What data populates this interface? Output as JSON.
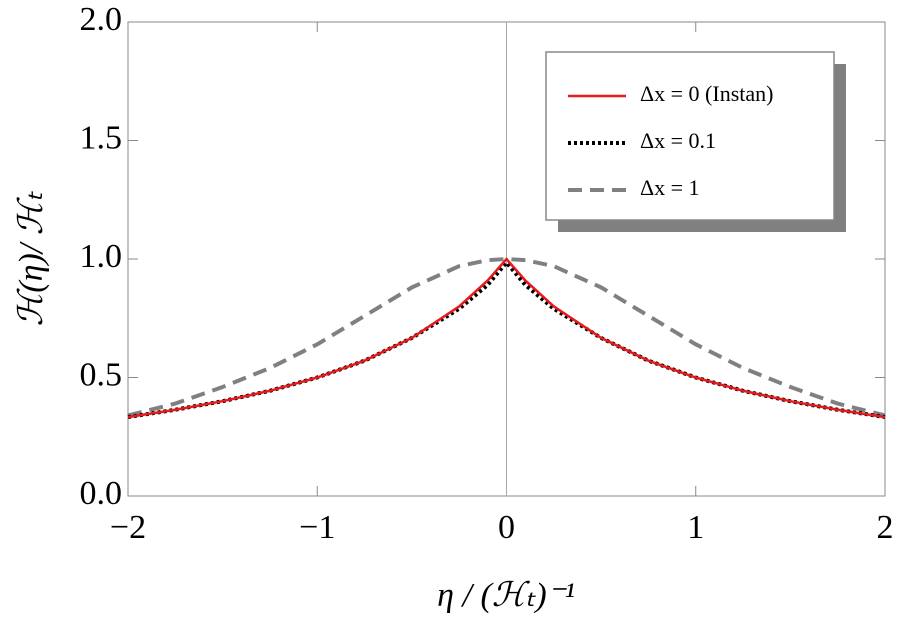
{
  "chart_data": {
    "type": "line",
    "xlabel": "η / (ℋₜ)⁻¹",
    "ylabel": "ℋ(η)/ ℋₜ",
    "x": [
      -2,
      -1.75,
      -1.5,
      -1.25,
      -1,
      -0.75,
      -0.5,
      -0.25,
      -0.1,
      0,
      0.1,
      0.25,
      0.5,
      0.75,
      1,
      1.25,
      1.5,
      1.75,
      2
    ],
    "series": [
      {
        "name": "Δx = 0 (Instan)",
        "color": "#e8191b",
        "values": [
          0.333,
          0.364,
          0.4,
          0.444,
          0.5,
          0.571,
          0.667,
          0.8,
          0.909,
          1,
          0.909,
          0.8,
          0.667,
          0.571,
          0.5,
          0.444,
          0.4,
          0.364,
          0.333
        ]
      },
      {
        "name": "Δx = 0.1",
        "color": "#000000",
        "values": [
          0.333,
          0.364,
          0.4,
          0.444,
          0.5,
          0.571,
          0.667,
          0.79,
          0.89,
          0.985,
          0.89,
          0.79,
          0.667,
          0.571,
          0.5,
          0.444,
          0.4,
          0.364,
          0.333
        ]
      },
      {
        "name": "Δx = 1",
        "color": "#808080",
        "values": [
          0.34,
          0.39,
          0.46,
          0.54,
          0.64,
          0.76,
          0.88,
          0.97,
          0.995,
          1,
          0.995,
          0.97,
          0.88,
          0.76,
          0.64,
          0.54,
          0.46,
          0.39,
          0.34
        ]
      }
    ],
    "xlim": [
      -2,
      2
    ],
    "xticks": [
      {
        "value": -2,
        "label": "−2"
      },
      {
        "value": -1,
        "label": "−1"
      },
      0,
      1,
      2
    ],
    "ylim": [
      0,
      2
    ],
    "yticks": [
      {
        "value": 0,
        "label": "0.0"
      },
      0.5,
      {
        "value": 1,
        "label": "1.0"
      },
      1.5,
      {
        "value": 2,
        "label": "2.0"
      }
    ],
    "legend": "upper right"
  }
}
